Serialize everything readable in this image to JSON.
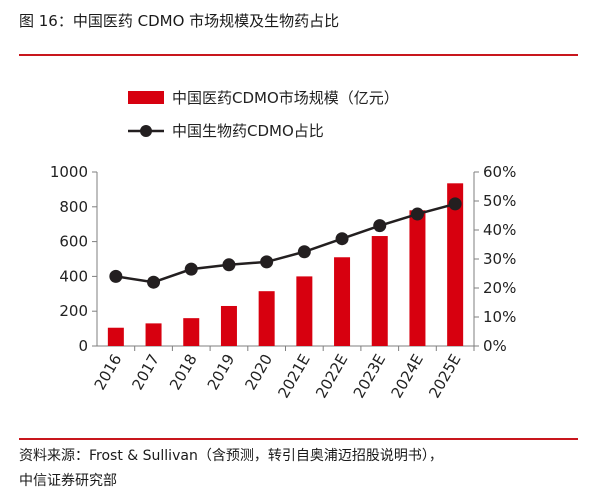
{
  "header": {
    "title": "图 16：中国医药 CDMO 市场规模及生物药占比"
  },
  "footer": {
    "source_line1": "资料来源：Frost & Sullivan（含预测，转引自奥浦迈招股说明书），",
    "source_line2": "中信证券研究部"
  },
  "colors": {
    "bar": "#d7000f",
    "line": "#231f20",
    "accent_rule": "#c8161d"
  },
  "chart_data": {
    "type": "bar",
    "categories": [
      "2016",
      "2017",
      "2018",
      "2019",
      "2020",
      "2021E",
      "2022E",
      "2023E",
      "2024E",
      "2025E"
    ],
    "series": [
      {
        "name": "中国医药CDMO市场规模（亿元）",
        "type": "bar",
        "axis": "left",
        "values": [
          105,
          130,
          160,
          230,
          315,
          400,
          510,
          632,
          780,
          935
        ]
      },
      {
        "name": "中国生物药CDMO占比",
        "type": "line",
        "axis": "right",
        "values": [
          24,
          22,
          26.5,
          28,
          29,
          32.5,
          37,
          41.5,
          45.5,
          49
        ]
      }
    ],
    "ylim_left": [
      0,
      1000
    ],
    "yticks_left": [
      "0",
      "200",
      "400",
      "600",
      "800",
      "1000"
    ],
    "ylim_right": [
      0,
      60
    ],
    "yticks_right": [
      "0%",
      "10%",
      "20%",
      "30%",
      "40%",
      "50%",
      "60%"
    ],
    "legend_position": "top-left",
    "grid": false
  }
}
